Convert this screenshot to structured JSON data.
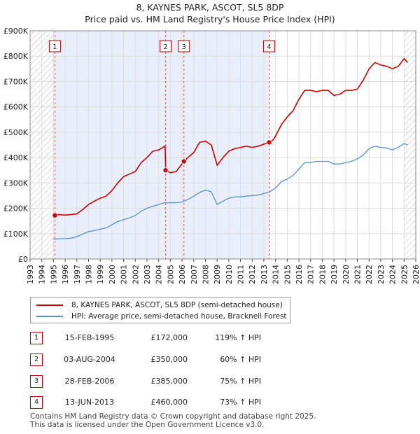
{
  "title_line1": "8, KAYNES PARK, ASCOT, SL5 8DP",
  "title_line2": "Price paid vs. HM Land Registry's House Price Index (HPI)",
  "colors": {
    "property": "#cc0000",
    "hpi": "#5b8ec9",
    "shade": "#e8eefa",
    "grid": "#dddddd"
  },
  "chart_data": {
    "type": "line",
    "xlim": [
      1993,
      2026
    ],
    "ylim": [
      0,
      900000
    ],
    "x_ticks": [
      1993,
      1994,
      1995,
      1996,
      1997,
      1998,
      1999,
      2000,
      2001,
      2002,
      2003,
      2004,
      2005,
      2006,
      2007,
      2008,
      2009,
      2010,
      2011,
      2012,
      2013,
      2014,
      2015,
      2016,
      2017,
      2018,
      2019,
      2020,
      2021,
      2022,
      2023,
      2024,
      2025,
      2026
    ],
    "y_ticks": [
      {
        "value": 0,
        "label": "£0"
      },
      {
        "value": 100000,
        "label": "£100K"
      },
      {
        "value": 200000,
        "label": "£200K"
      },
      {
        "value": 300000,
        "label": "£300K"
      },
      {
        "value": 400000,
        "label": "£400K"
      },
      {
        "value": 500000,
        "label": "£500K"
      },
      {
        "value": 600000,
        "label": "£600K"
      },
      {
        "value": 700000,
        "label": "£700K"
      },
      {
        "value": 800000,
        "label": "£800K"
      },
      {
        "value": 900000,
        "label": "£900K"
      }
    ],
    "hatched_before": 1995.12,
    "hatched_after": 2025.0,
    "shaded_range": [
      1995.12,
      2013.45
    ],
    "series": [
      {
        "name": "8, KAYNES PARK, ASCOT, SL5 8DP (semi-detached house)",
        "points": [
          [
            1995.12,
            172000
          ],
          [
            1995.5,
            175000
          ],
          [
            1996,
            173000
          ],
          [
            1996.5,
            175000
          ],
          [
            1997,
            178000
          ],
          [
            1997.5,
            195000
          ],
          [
            1998,
            215000
          ],
          [
            1998.5,
            228000
          ],
          [
            1999,
            240000
          ],
          [
            1999.5,
            248000
          ],
          [
            2000,
            270000
          ],
          [
            2000.5,
            300000
          ],
          [
            2001,
            325000
          ],
          [
            2001.5,
            335000
          ],
          [
            2002,
            345000
          ],
          [
            2002.5,
            380000
          ],
          [
            2003,
            400000
          ],
          [
            2003.5,
            425000
          ],
          [
            2004,
            430000
          ],
          [
            2004.55,
            445000
          ],
          [
            2004.6,
            350000
          ],
          [
            2005,
            340000
          ],
          [
            2005.5,
            345000
          ],
          [
            2006.16,
            385000
          ],
          [
            2006.5,
            400000
          ],
          [
            2007,
            420000
          ],
          [
            2007.5,
            460000
          ],
          [
            2008,
            465000
          ],
          [
            2008.5,
            450000
          ],
          [
            2009,
            370000
          ],
          [
            2009.5,
            400000
          ],
          [
            2010,
            425000
          ],
          [
            2010.5,
            435000
          ],
          [
            2011,
            440000
          ],
          [
            2011.5,
            445000
          ],
          [
            2012,
            440000
          ],
          [
            2012.5,
            445000
          ],
          [
            2013.45,
            460000
          ],
          [
            2013.8,
            470000
          ],
          [
            2014,
            485000
          ],
          [
            2014.5,
            530000
          ],
          [
            2015,
            560000
          ],
          [
            2015.5,
            585000
          ],
          [
            2016,
            630000
          ],
          [
            2016.5,
            665000
          ],
          [
            2017,
            665000
          ],
          [
            2017.5,
            660000
          ],
          [
            2018,
            665000
          ],
          [
            2018.5,
            665000
          ],
          [
            2019,
            645000
          ],
          [
            2019.5,
            650000
          ],
          [
            2020,
            665000
          ],
          [
            2020.5,
            665000
          ],
          [
            2021,
            670000
          ],
          [
            2021.5,
            705000
          ],
          [
            2022,
            750000
          ],
          [
            2022.5,
            775000
          ],
          [
            2023,
            765000
          ],
          [
            2023.5,
            760000
          ],
          [
            2024,
            750000
          ],
          [
            2024.5,
            760000
          ],
          [
            2025.0,
            790000
          ],
          [
            2025.3,
            775000
          ]
        ]
      },
      {
        "name": "HPI: Average price, semi-detached house, Bracknell Forest",
        "points": [
          [
            1995.0,
            78000
          ],
          [
            1995.5,
            80000
          ],
          [
            1996,
            80000
          ],
          [
            1996.5,
            82000
          ],
          [
            1997,
            88000
          ],
          [
            1997.5,
            98000
          ],
          [
            1998,
            108000
          ],
          [
            1998.5,
            112000
          ],
          [
            1999,
            118000
          ],
          [
            1999.5,
            122000
          ],
          [
            2000,
            135000
          ],
          [
            2000.5,
            148000
          ],
          [
            2001,
            155000
          ],
          [
            2001.5,
            162000
          ],
          [
            2002,
            172000
          ],
          [
            2002.5,
            188000
          ],
          [
            2003,
            200000
          ],
          [
            2003.5,
            208000
          ],
          [
            2004,
            215000
          ],
          [
            2004.5,
            222000
          ],
          [
            2005,
            222000
          ],
          [
            2005.5,
            222000
          ],
          [
            2006,
            225000
          ],
          [
            2006.5,
            235000
          ],
          [
            2007,
            248000
          ],
          [
            2007.5,
            262000
          ],
          [
            2008,
            272000
          ],
          [
            2008.5,
            265000
          ],
          [
            2009,
            215000
          ],
          [
            2009.5,
            228000
          ],
          [
            2010,
            240000
          ],
          [
            2010.5,
            245000
          ],
          [
            2011,
            245000
          ],
          [
            2011.5,
            248000
          ],
          [
            2012,
            250000
          ],
          [
            2012.5,
            252000
          ],
          [
            2013,
            258000
          ],
          [
            2013.5,
            265000
          ],
          [
            2014,
            280000
          ],
          [
            2014.5,
            305000
          ],
          [
            2015,
            315000
          ],
          [
            2015.5,
            330000
          ],
          [
            2016,
            355000
          ],
          [
            2016.5,
            380000
          ],
          [
            2017,
            380000
          ],
          [
            2017.5,
            385000
          ],
          [
            2018,
            385000
          ],
          [
            2018.5,
            385000
          ],
          [
            2019,
            375000
          ],
          [
            2019.5,
            375000
          ],
          [
            2020,
            380000
          ],
          [
            2020.5,
            385000
          ],
          [
            2021,
            395000
          ],
          [
            2021.5,
            410000
          ],
          [
            2022,
            435000
          ],
          [
            2022.5,
            445000
          ],
          [
            2023,
            440000
          ],
          [
            2023.5,
            438000
          ],
          [
            2024,
            430000
          ],
          [
            2024.5,
            440000
          ],
          [
            2025.0,
            455000
          ],
          [
            2025.3,
            450000
          ]
        ]
      }
    ],
    "sales": [
      {
        "num": "1",
        "x": 1995.12,
        "price": 172000
      },
      {
        "num": "2",
        "x": 2004.59,
        "price": 350000
      },
      {
        "num": "3",
        "x": 2006.16,
        "price": 385000
      },
      {
        "num": "4",
        "x": 2013.45,
        "price": 460000
      }
    ]
  },
  "legend": {
    "property_label": "8, KAYNES PARK, ASCOT, SL5 8DP (semi-detached house)",
    "hpi_label": "HPI: Average price, semi-detached house, Bracknell Forest"
  },
  "sales_table": [
    {
      "num": "1",
      "date": "15-FEB-1995",
      "price": "£172,000",
      "hpi": "119% ↑ HPI"
    },
    {
      "num": "2",
      "date": "03-AUG-2004",
      "price": "£350,000",
      "hpi": "60% ↑ HPI"
    },
    {
      "num": "3",
      "date": "28-FEB-2006",
      "price": "£385,000",
      "hpi": "75% ↑ HPI"
    },
    {
      "num": "4",
      "date": "13-JUN-2013",
      "price": "£460,000",
      "hpi": "73% ↑ HPI"
    }
  ],
  "footer_line1": "Contains HM Land Registry data © Crown copyright and database right 2025.",
  "footer_line2": "This data is licensed under the Open Government Licence v3.0."
}
